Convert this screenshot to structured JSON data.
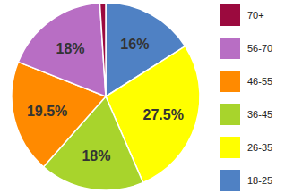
{
  "chart_data": {
    "type": "pie",
    "categories": [
      "18-25",
      "26-35",
      "36-45",
      "46-55",
      "56-70",
      "70+"
    ],
    "values": [
      16,
      27.5,
      18,
      19.5,
      18,
      1
    ],
    "value_labels": [
      "16%",
      "27.5%",
      "18%",
      "19.5%",
      "18%",
      null
    ],
    "colors": [
      "#4f81c4",
      "#ffff00",
      "#a8d42c",
      "#ff8a00",
      "#b86ec4",
      "#9b0a3e"
    ],
    "data_labels": true,
    "legend": "right"
  }
}
